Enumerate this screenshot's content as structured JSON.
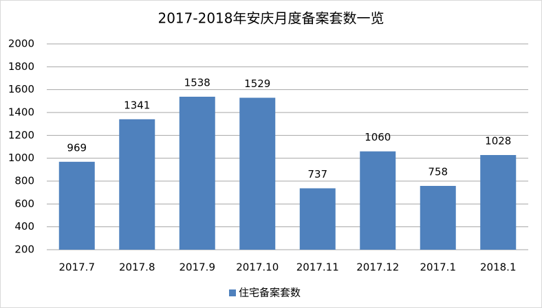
{
  "chart_data": {
    "type": "bar",
    "title": "2017-2018年安庆月度备案套数一览",
    "categories": [
      "2017.7",
      "2017.8",
      "2017.9",
      "2017.10",
      "2017.11",
      "2017.12",
      "2017.1",
      "2018.1"
    ],
    "series": [
      {
        "name": "住宅备案套数",
        "color": "#4f81bd",
        "values": [
          969,
          1341,
          1538,
          1529,
          737,
          1060,
          758,
          1028
        ]
      }
    ],
    "ylim": [
      200,
      2000
    ],
    "yticks": [
      200,
      400,
      600,
      800,
      1000,
      1200,
      1400,
      1600,
      1800,
      2000
    ],
    "grid": true
  }
}
